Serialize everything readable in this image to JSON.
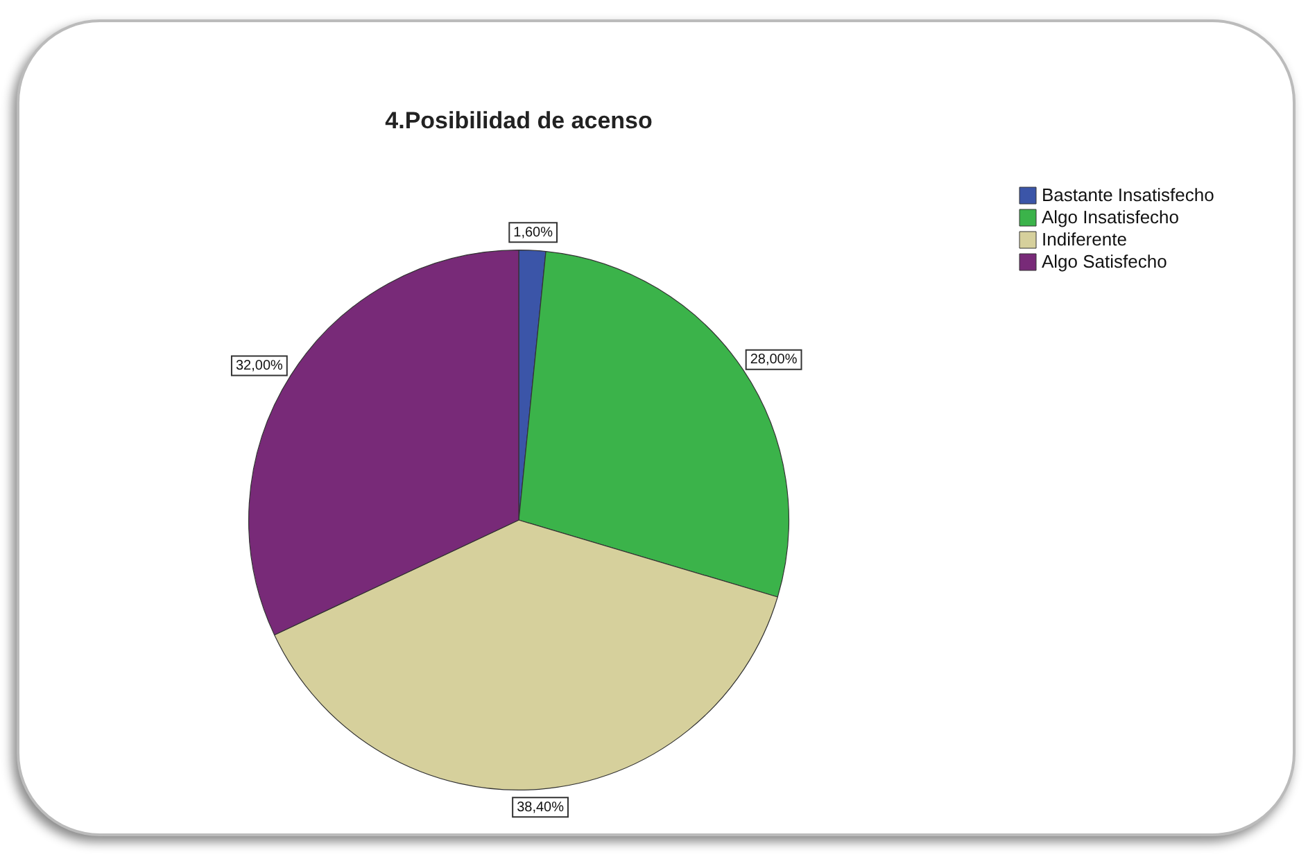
{
  "chart_data": {
    "type": "pie",
    "title": "4.Posibilidad de acenso",
    "categories": [
      "Bastante Insatisfecho",
      "Algo Insatisfecho",
      "Indiferente",
      "Algo Satisfecho"
    ],
    "values": [
      1.6,
      28.0,
      38.4,
      32.0
    ],
    "colors": [
      "#3b55a8",
      "#3bb34a",
      "#d6d09c",
      "#782a78"
    ],
    "value_labels": [
      "1,60%",
      "28,00%",
      "38,40%",
      "32,00%"
    ],
    "legend": "top right"
  }
}
